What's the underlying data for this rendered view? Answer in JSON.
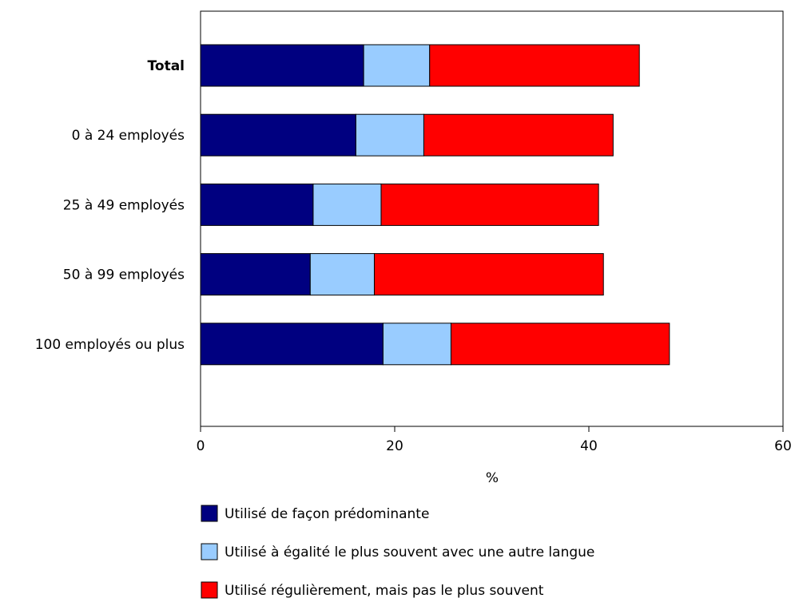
{
  "chart_data": {
    "type": "bar",
    "orientation": "horizontal",
    "stacked": true,
    "categories": [
      "Total",
      "0 à 24 employés",
      "25 à 49 employés",
      "50 à 99 employés",
      "100 employés ou plus"
    ],
    "bold_categories": [
      "Total"
    ],
    "series": [
      {
        "name": "Utilisé de façon prédominante",
        "color": "#000080",
        "values": [
          16.8,
          16.0,
          11.6,
          11.3,
          18.8
        ]
      },
      {
        "name": "Utilisé à égalité le plus souvent avec une autre langue",
        "color": "#99ccff",
        "values": [
          6.8,
          7.0,
          7.0,
          6.6,
          7.0
        ]
      },
      {
        "name": "Utilisé régulièrement, mais pas le plus souvent",
        "color": "#ff0000",
        "values": [
          21.6,
          19.5,
          22.4,
          23.6,
          22.5
        ]
      }
    ],
    "xlabel": "%",
    "xlim": [
      0,
      60
    ],
    "xticks": [
      0,
      20,
      40,
      60
    ],
    "grid": false,
    "legend_position": "bottom"
  }
}
